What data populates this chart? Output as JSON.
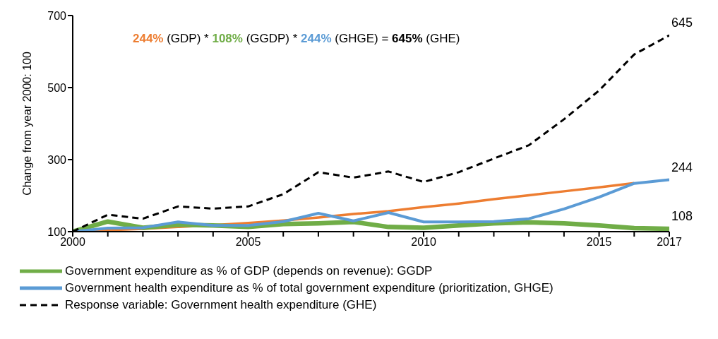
{
  "chart_data": {
    "type": "line",
    "ylabel": "Change from year 2000: 100",
    "x": [
      2000,
      2001,
      2002,
      2003,
      2004,
      2005,
      2006,
      2007,
      2008,
      2009,
      2010,
      2011,
      2012,
      2013,
      2014,
      2015,
      2016,
      2017
    ],
    "xlim": [
      2000,
      2017
    ],
    "xticks": [
      2000,
      {
        "value": 2001,
        "label": null
      },
      {
        "value": 2002,
        "label": null
      },
      {
        "value": 2003,
        "label": null
      },
      {
        "value": 2004,
        "label": null
      },
      2005,
      {
        "value": 2006,
        "label": null
      },
      {
        "value": 2007,
        "label": null
      },
      {
        "value": 2008,
        "label": null
      },
      {
        "value": 2009,
        "label": null
      },
      2010,
      {
        "value": 2011,
        "label": null
      },
      {
        "value": 2012,
        "label": null
      },
      {
        "value": 2013,
        "label": null
      },
      {
        "value": 2014,
        "label": null
      },
      2015,
      {
        "value": 2016,
        "label": null
      },
      2017
    ],
    "ylim": [
      100,
      700
    ],
    "yticks": [
      100,
      300,
      500,
      700
    ],
    "grid": false,
    "legend": "bottom",
    "marker": "none",
    "annotations": [
      "244% (GDP) * 108% (GGDP) * 244% (GHGE) = 645% (GHE)"
    ],
    "series": [
      {
        "color": "#ed7d31",
        "values": [
          100,
          104,
          108,
          113,
          118,
          124,
          131,
          139,
          149,
          157,
          168,
          178,
          190,
          201,
          212,
          223,
          235,
          null
        ]
      },
      {
        "name": "Government expenditure as % of GDP (depends on revenue): GGDP",
        "color": "#70ad47",
        "values": [
          100,
          128,
          111,
          119,
          117,
          113,
          121,
          123,
          127,
          113,
          111,
          117,
          123,
          126,
          123,
          117,
          110,
          108
        ],
        "value_labels": [
          null,
          null,
          null,
          null,
          null,
          null,
          null,
          null,
          null,
          null,
          null,
          null,
          null,
          null,
          null,
          null,
          null,
          "108"
        ]
      },
      {
        "name": "Government health expenditure as % of total government expenditure (prioritization, GHGE)",
        "color": "#5b9bd5",
        "values": [
          100,
          110,
          111,
          127,
          117,
          117,
          128,
          151,
          130,
          153,
          127,
          127,
          128,
          136,
          163,
          196,
          234,
          244
        ],
        "value_labels": [
          null,
          null,
          null,
          null,
          null,
          null,
          null,
          null,
          null,
          null,
          null,
          null,
          null,
          null,
          null,
          null,
          null,
          "244"
        ]
      },
      {
        "name": "Response variable: Government health expenditure (GHE)",
        "color": "#000000",
        "line_style": "dashed",
        "values": [
          100,
          147,
          136,
          170,
          164,
          170,
          204,
          265,
          250,
          267,
          238,
          265,
          303,
          340,
          412,
          492,
          592,
          645
        ],
        "value_labels": [
          null,
          null,
          null,
          null,
          null,
          null,
          null,
          null,
          null,
          null,
          null,
          null,
          null,
          null,
          null,
          null,
          null,
          "645"
        ]
      }
    ]
  }
}
